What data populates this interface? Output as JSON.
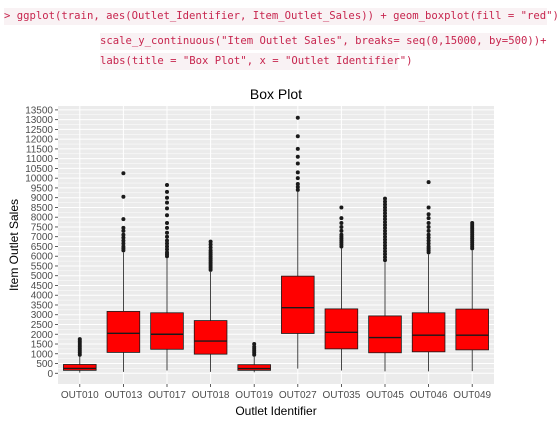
{
  "code": {
    "prompt": ">",
    "lines": [
      "ggplot(train, aes(Outlet_Identifier, Item_Outlet_Sales)) + geom_boxplot(fill = \"red\")+",
      "scale_y_continuous(\"Item Outlet Sales\", breaks= seq(0,15000, by=500))+",
      "labs(title = \"Box Plot\", x = \"Outlet Identifier\")"
    ]
  },
  "colors": {
    "panel_bg": "#ebebeb",
    "grid": "#ffffff",
    "box_fill": "#ff0000",
    "box_stroke": "#1a1a1a",
    "code_text": "#c7254e",
    "code_bg": "#f9f2f4"
  },
  "chart_data": {
    "type": "boxplot",
    "title": "Box Plot",
    "xlabel": "Outlet Identifier",
    "ylabel": "Item Outlet Sales",
    "ylim": [
      -550,
      13700
    ],
    "yticks": [
      0,
      500,
      1000,
      1500,
      2000,
      2500,
      3000,
      3500,
      4000,
      4500,
      5000,
      5500,
      6000,
      6500,
      7000,
      7500,
      8000,
      8500,
      9000,
      9500,
      10000,
      10500,
      11000,
      11500,
      12000,
      12500,
      13000,
      13500
    ],
    "grid": true,
    "categories": [
      "OUT010",
      "OUT013",
      "OUT017",
      "OUT018",
      "OUT019",
      "OUT027",
      "OUT035",
      "OUT045",
      "OUT046",
      "OUT049"
    ],
    "boxes": [
      {
        "category": "OUT010",
        "whisker_low": 33,
        "q1": 150,
        "median": 250,
        "q3": 450,
        "whisker_high": 900,
        "outliers": [
          950,
          1050,
          1150,
          1250,
          1350,
          1450,
          1550,
          1650,
          1750
        ]
      },
      {
        "category": "OUT013",
        "whisker_low": 73,
        "q1": 1070,
        "median": 2050,
        "q3": 3170,
        "whisker_high": 6200,
        "outliers": [
          6300,
          6400,
          6500,
          6650,
          6800,
          6950,
          7100,
          7300,
          7450,
          7900,
          9050,
          10250
        ]
      },
      {
        "category": "OUT017",
        "whisker_low": 143,
        "q1": 1230,
        "median": 2000,
        "q3": 3100,
        "whisker_high": 5900,
        "outliers": [
          6000,
          6100,
          6200,
          6350,
          6500,
          6650,
          6800,
          7000,
          7200,
          7450,
          7700,
          8100,
          8450,
          8750,
          9000,
          9300,
          9650
        ]
      },
      {
        "category": "OUT018",
        "whisker_low": 70,
        "q1": 980,
        "median": 1650,
        "q3": 2700,
        "whisker_high": 5200,
        "outliers": [
          5300,
          5400,
          5500,
          5600,
          5700,
          5800,
          5900,
          6000,
          6100,
          6200,
          6300,
          6450,
          6600,
          6750
        ]
      },
      {
        "category": "OUT019",
        "whisker_low": 50,
        "q1": 150,
        "median": 240,
        "q3": 440,
        "whisker_high": 850,
        "outliers": [
          950,
          1050,
          1150,
          1250,
          1350,
          1500
        ]
      },
      {
        "category": "OUT027",
        "whisker_low": 240,
        "q1": 2040,
        "median": 3360,
        "q3": 4980,
        "whisker_high": 9300,
        "outliers": [
          9400,
          9550,
          9700,
          10000,
          10300,
          10750,
          11100,
          11500,
          12150,
          13100
        ]
      },
      {
        "category": "OUT035",
        "whisker_low": 140,
        "q1": 1250,
        "median": 2100,
        "q3": 3300,
        "whisker_high": 6400,
        "outliers": [
          6500,
          6600,
          6700,
          6800,
          6900,
          7000,
          7100,
          7300,
          7500,
          7700,
          7950,
          8500
        ]
      },
      {
        "category": "OUT045",
        "whisker_low": 99,
        "q1": 1050,
        "median": 1830,
        "q3": 2940,
        "whisker_high": 5700,
        "outliers": [
          5800,
          5950,
          6100,
          6250,
          6400,
          6550,
          6700,
          6850,
          7000,
          7150,
          7300,
          7450,
          7600,
          7750,
          7900,
          8050,
          8200,
          8350,
          8500,
          8650,
          8800,
          8950
        ]
      },
      {
        "category": "OUT046",
        "whisker_low": 100,
        "q1": 1100,
        "median": 1950,
        "q3": 3100,
        "whisker_high": 6100,
        "outliers": [
          6200,
          6300,
          6400,
          6500,
          6650,
          6800,
          6950,
          7100,
          7300,
          7500,
          7700,
          7950,
          8150,
          8500,
          9800
        ]
      },
      {
        "category": "OUT049",
        "whisker_low": 110,
        "q1": 1200,
        "median": 1950,
        "q3": 3290,
        "whisker_high": 6300,
        "outliers": [
          6400,
          6500,
          6600,
          6700,
          6800,
          6900,
          7000,
          7100,
          7200,
          7300,
          7400,
          7500,
          7600,
          7700
        ]
      }
    ]
  }
}
